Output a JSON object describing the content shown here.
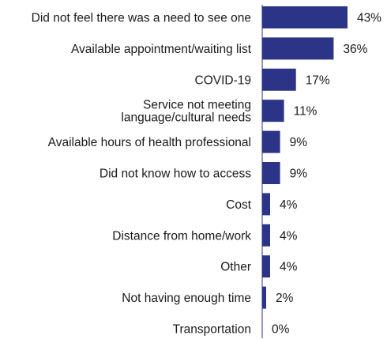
{
  "chart_data": {
    "type": "bar",
    "orientation": "horizontal",
    "categories": [
      [
        "Did not feel there was a need to see one"
      ],
      [
        "Available appointment/waiting list"
      ],
      [
        "COVID-19"
      ],
      [
        "Service not meeting",
        "language/cultural needs"
      ],
      [
        "Available hours of health professional"
      ],
      [
        "Did not know how to access"
      ],
      [
        "Cost"
      ],
      [
        "Distance from home/work"
      ],
      [
        "Other"
      ],
      [
        "Not having enough time"
      ],
      [
        "Transportation"
      ]
    ],
    "values": [
      43,
      36,
      17,
      11,
      9,
      9,
      4,
      4,
      4,
      2,
      0
    ],
    "value_labels": [
      "43%",
      "36%",
      "17%",
      "11%",
      "9%",
      "9%",
      "4%",
      "4%",
      "4%",
      "2%",
      "0%"
    ],
    "bar_color": "#2b3486",
    "axis_color": "#2b3486",
    "xlim": [
      0,
      43
    ],
    "grid": false,
    "legend": "none"
  }
}
